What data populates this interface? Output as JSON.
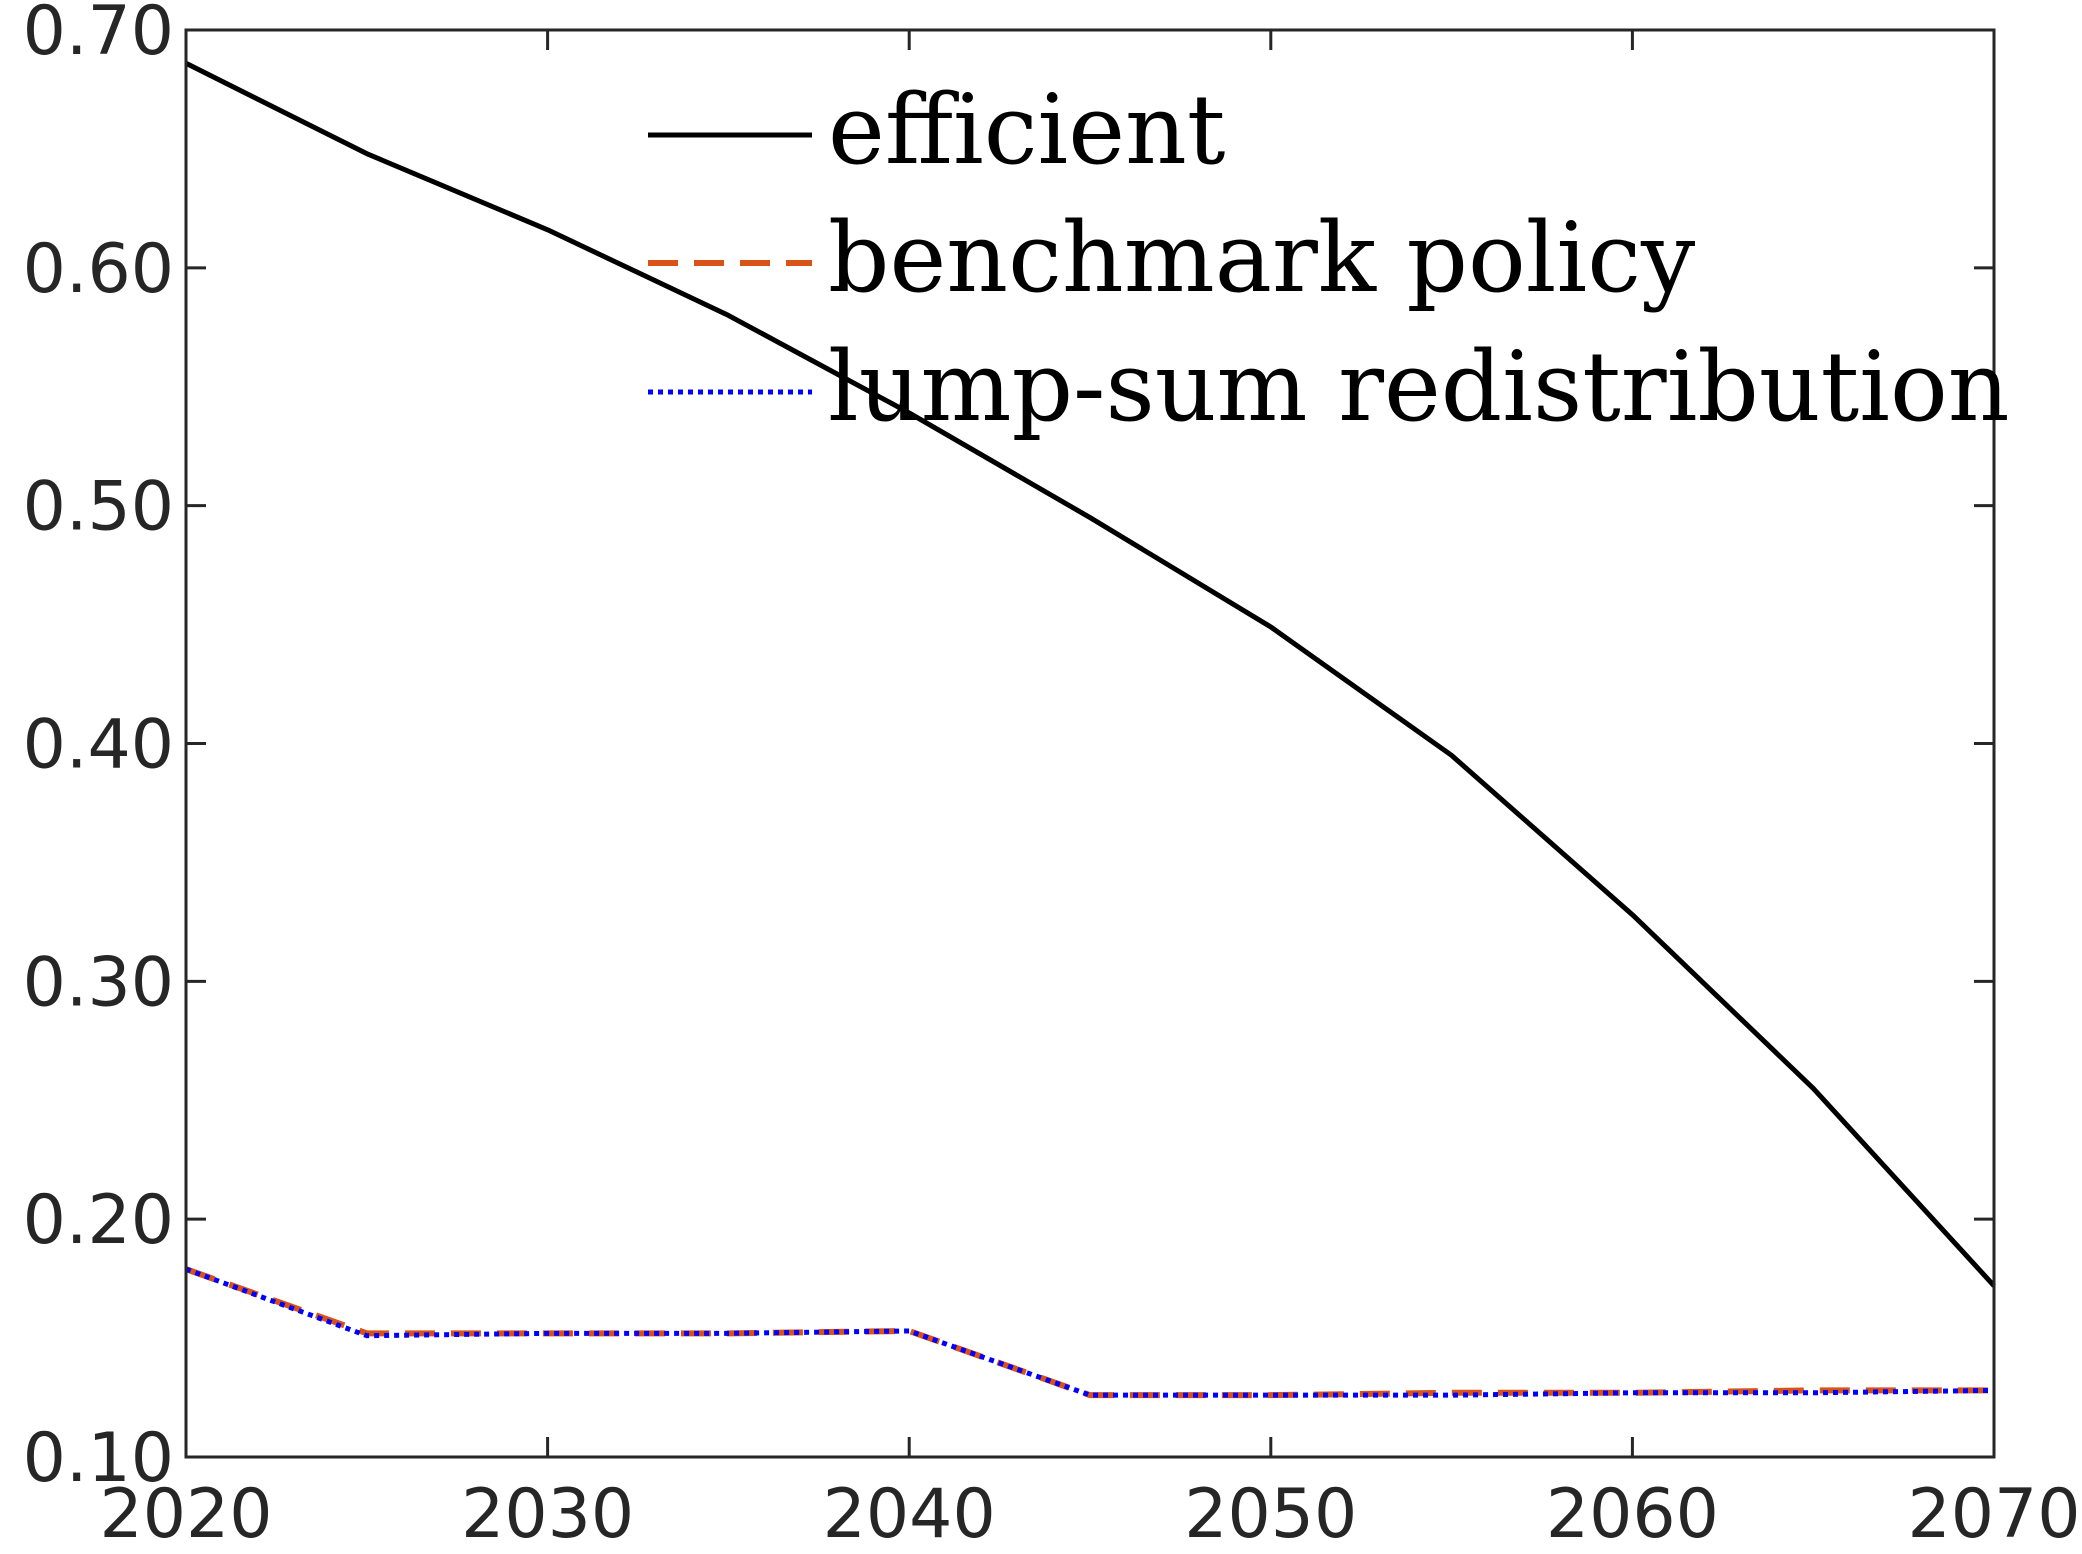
{
  "chart_data": {
    "type": "line",
    "title": "",
    "xlabel": "",
    "ylabel": "",
    "xlim": [
      2020,
      2070
    ],
    "ylim": [
      0.1,
      0.7
    ],
    "xticks": [
      "2020",
      "2030",
      "2040",
      "2050",
      "2060",
      "2070"
    ],
    "yticks": [
      "0.10",
      "0.20",
      "0.30",
      "0.40",
      "0.50",
      "0.60",
      "0.70"
    ],
    "grid": false,
    "legend_position": "top-right",
    "series": [
      {
        "name": "efficient",
        "color": "#000000",
        "style": "solid",
        "x": [
          2020,
          2025,
          2030,
          2035,
          2040,
          2045,
          2050,
          2055,
          2060,
          2065,
          2070
        ],
        "y": [
          0.686,
          0.648,
          0.616,
          0.58,
          0.539,
          0.495,
          0.449,
          0.395,
          0.328,
          0.255,
          0.172
        ]
      },
      {
        "name": "benchmark policy",
        "color": "#D95319",
        "style": "dashed",
        "x": [
          2020,
          2025,
          2030,
          2035,
          2040,
          2045,
          2050,
          2055,
          2060,
          2065,
          2070
        ],
        "y": [
          0.179,
          0.152,
          0.152,
          0.152,
          0.153,
          0.126,
          0.126,
          0.127,
          0.127,
          0.128,
          0.128
        ]
      },
      {
        "name": "lump-sum redistribution",
        "color": "#0000FF",
        "style": "dotted",
        "x": [
          2020,
          2025,
          2030,
          2035,
          2040,
          2045,
          2050,
          2055,
          2060,
          2065,
          2070
        ],
        "y": [
          0.179,
          0.151,
          0.152,
          0.152,
          0.153,
          0.126,
          0.126,
          0.126,
          0.127,
          0.127,
          0.128
        ]
      }
    ]
  }
}
